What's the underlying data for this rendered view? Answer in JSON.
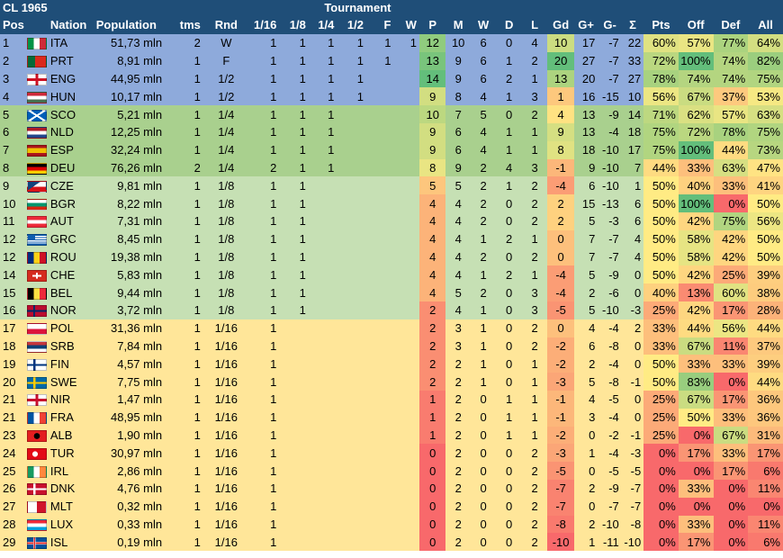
{
  "title": "CL 1965",
  "tournament_label": "Tournament",
  "headers": [
    "Pos",
    "Nation",
    "Population",
    "tms",
    "Rnd",
    "1/16",
    "1/8",
    "1/4",
    "1/2",
    "F",
    "W",
    "P",
    "M",
    "W",
    "D",
    "L",
    "Gd",
    "G+",
    "G-",
    "Σ",
    "Pts",
    "Off",
    "Def",
    "All"
  ],
  "colors": {
    "header_bg": "#1f4e78",
    "band_blue": "#8eaadb",
    "band_green": "#a9d08e",
    "band_lightgreen": "#c6e0b4",
    "band_yellow": "#ffe699",
    "scale_red": "#f8696b",
    "scale_yellow": "#ffeb84",
    "scale_green": "#63be7b"
  },
  "rows": [
    {
      "pos": "1",
      "band": "blue",
      "flag": "ita-flag",
      "nation": "ITA",
      "pop": "51,73 mln",
      "tms": "2",
      "rnd": "W",
      "r16": "1",
      "r8": "1",
      "r4": "1",
      "r2": "1",
      "f": "1",
      "w": "1",
      "p": "12",
      "m": "10",
      "win": "6",
      "d": "0",
      "l": "4",
      "gd": "10",
      "gp": "17",
      "gm": "-7",
      "sig": "22",
      "pts": "60%",
      "off": "57%",
      "def": "77%",
      "all": "64%"
    },
    {
      "pos": "2",
      "band": "blue",
      "flag": "prt-flag",
      "nation": "PRT",
      "pop": "8,91 mln",
      "tms": "1",
      "rnd": "F",
      "r16": "1",
      "r8": "1",
      "r4": "1",
      "r2": "1",
      "f": "1",
      "w": "",
      "p": "13",
      "m": "9",
      "win": "6",
      "d": "1",
      "l": "2",
      "gd": "20",
      "gp": "27",
      "gm": "-7",
      "sig": "33",
      "pts": "72%",
      "off": "100%",
      "def": "74%",
      "all": "82%"
    },
    {
      "pos": "3",
      "band": "blue",
      "flag": "eng-flag",
      "nation": "ENG",
      "pop": "44,95 mln",
      "tms": "1",
      "rnd": "1/2",
      "r16": "1",
      "r8": "1",
      "r4": "1",
      "r2": "1",
      "f": "",
      "w": "",
      "p": "14",
      "m": "9",
      "win": "6",
      "d": "2",
      "l": "1",
      "gd": "13",
      "gp": "20",
      "gm": "-7",
      "sig": "27",
      "pts": "78%",
      "off": "74%",
      "def": "74%",
      "all": "75%"
    },
    {
      "pos": "4",
      "band": "blue",
      "flag": "hun-flag",
      "nation": "HUN",
      "pop": "10,17 mln",
      "tms": "1",
      "rnd": "1/2",
      "r16": "1",
      "r8": "1",
      "r4": "1",
      "r2": "1",
      "f": "",
      "w": "",
      "p": "9",
      "m": "8",
      "win": "4",
      "d": "1",
      "l": "3",
      "gd": "1",
      "gp": "16",
      "gm": "-15",
      "sig": "10",
      "pts": "56%",
      "off": "67%",
      "def": "37%",
      "all": "53%"
    },
    {
      "pos": "5",
      "band": "green",
      "flag": "sco-flag",
      "nation": "SCO",
      "pop": "5,21 mln",
      "tms": "1",
      "rnd": "1/4",
      "r16": "1",
      "r8": "1",
      "r4": "1",
      "r2": "",
      "f": "",
      "w": "",
      "p": "10",
      "m": "7",
      "win": "5",
      "d": "0",
      "l": "2",
      "gd": "4",
      "gp": "13",
      "gm": "-9",
      "sig": "14",
      "pts": "71%",
      "off": "62%",
      "def": "57%",
      "all": "63%"
    },
    {
      "pos": "6",
      "band": "green",
      "flag": "nld-flag",
      "nation": "NLD",
      "pop": "12,25 mln",
      "tms": "1",
      "rnd": "1/4",
      "r16": "1",
      "r8": "1",
      "r4": "1",
      "r2": "",
      "f": "",
      "w": "",
      "p": "9",
      "m": "6",
      "win": "4",
      "d": "1",
      "l": "1",
      "gd": "9",
      "gp": "13",
      "gm": "-4",
      "sig": "18",
      "pts": "75%",
      "off": "72%",
      "def": "78%",
      "all": "75%"
    },
    {
      "pos": "7",
      "band": "green",
      "flag": "esp-flag",
      "nation": "ESP",
      "pop": "32,24 mln",
      "tms": "1",
      "rnd": "1/4",
      "r16": "1",
      "r8": "1",
      "r4": "1",
      "r2": "",
      "f": "",
      "w": "",
      "p": "9",
      "m": "6",
      "win": "4",
      "d": "1",
      "l": "1",
      "gd": "8",
      "gp": "18",
      "gm": "-10",
      "sig": "17",
      "pts": "75%",
      "off": "100%",
      "def": "44%",
      "all": "73%"
    },
    {
      "pos": "8",
      "band": "green",
      "flag": "deu-flag",
      "nation": "DEU",
      "pop": "76,26 mln",
      "tms": "2",
      "rnd": "1/4",
      "r16": "2",
      "r8": "1",
      "r4": "1",
      "r2": "",
      "f": "",
      "w": "",
      "p": "8",
      "m": "9",
      "win": "2",
      "d": "4",
      "l": "3",
      "gd": "-1",
      "gp": "9",
      "gm": "-10",
      "sig": "7",
      "pts": "44%",
      "off": "33%",
      "def": "63%",
      "all": "47%"
    },
    {
      "pos": "9",
      "band": "lgreen",
      "flag": "cze-flag",
      "nation": "CZE",
      "pop": "9,81 mln",
      "tms": "1",
      "rnd": "1/8",
      "r16": "1",
      "r8": "1",
      "r4": "",
      "r2": "",
      "f": "",
      "w": "",
      "p": "5",
      "m": "5",
      "win": "2",
      "d": "1",
      "l": "2",
      "gd": "-4",
      "gp": "6",
      "gm": "-10",
      "sig": "1",
      "pts": "50%",
      "off": "40%",
      "def": "33%",
      "all": "41%"
    },
    {
      "pos": "10",
      "band": "lgreen",
      "flag": "bgr-flag",
      "nation": "BGR",
      "pop": "8,22 mln",
      "tms": "1",
      "rnd": "1/8",
      "r16": "1",
      "r8": "1",
      "r4": "",
      "r2": "",
      "f": "",
      "w": "",
      "p": "4",
      "m": "4",
      "win": "2",
      "d": "0",
      "l": "2",
      "gd": "2",
      "gp": "15",
      "gm": "-13",
      "sig": "6",
      "pts": "50%",
      "off": "100%",
      "def": "0%",
      "all": "50%"
    },
    {
      "pos": "11",
      "band": "lgreen",
      "flag": "aut-flag",
      "nation": "AUT",
      "pop": "7,31 mln",
      "tms": "1",
      "rnd": "1/8",
      "r16": "1",
      "r8": "1",
      "r4": "",
      "r2": "",
      "f": "",
      "w": "",
      "p": "4",
      "m": "4",
      "win": "2",
      "d": "0",
      "l": "2",
      "gd": "2",
      "gp": "5",
      "gm": "-3",
      "sig": "6",
      "pts": "50%",
      "off": "42%",
      "def": "75%",
      "all": "56%"
    },
    {
      "pos": "12",
      "band": "lgreen",
      "flag": "grc-flag",
      "nation": "GRC",
      "pop": "8,45 mln",
      "tms": "1",
      "rnd": "1/8",
      "r16": "1",
      "r8": "1",
      "r4": "",
      "r2": "",
      "f": "",
      "w": "",
      "p": "4",
      "m": "4",
      "win": "1",
      "d": "2",
      "l": "1",
      "gd": "0",
      "gp": "7",
      "gm": "-7",
      "sig": "4",
      "pts": "50%",
      "off": "58%",
      "def": "42%",
      "all": "50%"
    },
    {
      "pos": "12",
      "band": "lgreen",
      "flag": "rou-flag",
      "nation": "ROU",
      "pop": "19,38 mln",
      "tms": "1",
      "rnd": "1/8",
      "r16": "1",
      "r8": "1",
      "r4": "",
      "r2": "",
      "f": "",
      "w": "",
      "p": "4",
      "m": "4",
      "win": "2",
      "d": "0",
      "l": "2",
      "gd": "0",
      "gp": "7",
      "gm": "-7",
      "sig": "4",
      "pts": "50%",
      "off": "58%",
      "def": "42%",
      "all": "50%"
    },
    {
      "pos": "14",
      "band": "lgreen",
      "flag": "che-flag",
      "nation": "CHE",
      "pop": "5,83 mln",
      "tms": "1",
      "rnd": "1/8",
      "r16": "1",
      "r8": "1",
      "r4": "",
      "r2": "",
      "f": "",
      "w": "",
      "p": "4",
      "m": "4",
      "win": "1",
      "d": "2",
      "l": "1",
      "gd": "-4",
      "gp": "5",
      "gm": "-9",
      "sig": "0",
      "pts": "50%",
      "off": "42%",
      "def": "25%",
      "all": "39%"
    },
    {
      "pos": "15",
      "band": "lgreen",
      "flag": "bel-flag",
      "nation": "BEL",
      "pop": "9,44 mln",
      "tms": "1",
      "rnd": "1/8",
      "r16": "1",
      "r8": "1",
      "r4": "",
      "r2": "",
      "f": "",
      "w": "",
      "p": "4",
      "m": "5",
      "win": "2",
      "d": "0",
      "l": "3",
      "gd": "-4",
      "gp": "2",
      "gm": "-6",
      "sig": "0",
      "pts": "40%",
      "off": "13%",
      "def": "60%",
      "all": "38%"
    },
    {
      "pos": "16",
      "band": "lgreen",
      "flag": "nor-flag",
      "nation": "NOR",
      "pop": "3,72 mln",
      "tms": "1",
      "rnd": "1/8",
      "r16": "1",
      "r8": "1",
      "r4": "",
      "r2": "",
      "f": "",
      "w": "",
      "p": "2",
      "m": "4",
      "win": "1",
      "d": "0",
      "l": "3",
      "gd": "-5",
      "gp": "5",
      "gm": "-10",
      "sig": "-3",
      "pts": "25%",
      "off": "42%",
      "def": "17%",
      "all": "28%"
    },
    {
      "pos": "17",
      "band": "yellow",
      "flag": "pol-flag",
      "nation": "POL",
      "pop": "31,36 mln",
      "tms": "1",
      "rnd": "1/16",
      "r16": "1",
      "r8": "",
      "r4": "",
      "r2": "",
      "f": "",
      "w": "",
      "p": "2",
      "m": "3",
      "win": "1",
      "d": "0",
      "l": "2",
      "gd": "0",
      "gp": "4",
      "gm": "-4",
      "sig": "2",
      "pts": "33%",
      "off": "44%",
      "def": "56%",
      "all": "44%"
    },
    {
      "pos": "18",
      "band": "yellow",
      "flag": "srb-flag",
      "nation": "SRB",
      "pop": "7,84 mln",
      "tms": "1",
      "rnd": "1/16",
      "r16": "1",
      "r8": "",
      "r4": "",
      "r2": "",
      "f": "",
      "w": "",
      "p": "2",
      "m": "3",
      "win": "1",
      "d": "0",
      "l": "2",
      "gd": "-2",
      "gp": "6",
      "gm": "-8",
      "sig": "0",
      "pts": "33%",
      "off": "67%",
      "def": "11%",
      "all": "37%"
    },
    {
      "pos": "19",
      "band": "yellow",
      "flag": "fin-flag",
      "nation": "FIN",
      "pop": "4,57 mln",
      "tms": "1",
      "rnd": "1/16",
      "r16": "1",
      "r8": "",
      "r4": "",
      "r2": "",
      "f": "",
      "w": "",
      "p": "2",
      "m": "2",
      "win": "1",
      "d": "0",
      "l": "1",
      "gd": "-2",
      "gp": "2",
      "gm": "-4",
      "sig": "0",
      "pts": "50%",
      "off": "33%",
      "def": "33%",
      "all": "39%"
    },
    {
      "pos": "20",
      "band": "yellow",
      "flag": "swe-flag",
      "nation": "SWE",
      "pop": "7,75 mln",
      "tms": "1",
      "rnd": "1/16",
      "r16": "1",
      "r8": "",
      "r4": "",
      "r2": "",
      "f": "",
      "w": "",
      "p": "2",
      "m": "2",
      "win": "1",
      "d": "0",
      "l": "1",
      "gd": "-3",
      "gp": "5",
      "gm": "-8",
      "sig": "-1",
      "pts": "50%",
      "off": "83%",
      "def": "0%",
      "all": "44%"
    },
    {
      "pos": "21",
      "band": "yellow",
      "flag": "nir-flag",
      "nation": "NIR",
      "pop": "1,47 mln",
      "tms": "1",
      "rnd": "1/16",
      "r16": "1",
      "r8": "",
      "r4": "",
      "r2": "",
      "f": "",
      "w": "",
      "p": "1",
      "m": "2",
      "win": "0",
      "d": "1",
      "l": "1",
      "gd": "-1",
      "gp": "4",
      "gm": "-5",
      "sig": "0",
      "pts": "25%",
      "off": "67%",
      "def": "17%",
      "all": "36%"
    },
    {
      "pos": "21",
      "band": "yellow",
      "flag": "fra-flag",
      "nation": "FRA",
      "pop": "48,95 mln",
      "tms": "1",
      "rnd": "1/16",
      "r16": "1",
      "r8": "",
      "r4": "",
      "r2": "",
      "f": "",
      "w": "",
      "p": "1",
      "m": "2",
      "win": "0",
      "d": "1",
      "l": "1",
      "gd": "-1",
      "gp": "3",
      "gm": "-4",
      "sig": "0",
      "pts": "25%",
      "off": "50%",
      "def": "33%",
      "all": "36%"
    },
    {
      "pos": "23",
      "band": "yellow",
      "flag": "alb-flag",
      "nation": "ALB",
      "pop": "1,90 mln",
      "tms": "1",
      "rnd": "1/16",
      "r16": "1",
      "r8": "",
      "r4": "",
      "r2": "",
      "f": "",
      "w": "",
      "p": "1",
      "m": "2",
      "win": "0",
      "d": "1",
      "l": "1",
      "gd": "-2",
      "gp": "0",
      "gm": "-2",
      "sig": "-1",
      "pts": "25%",
      "off": "0%",
      "def": "67%",
      "all": "31%"
    },
    {
      "pos": "24",
      "band": "yellow",
      "flag": "tur-flag",
      "nation": "TUR",
      "pop": "30,97 mln",
      "tms": "1",
      "rnd": "1/16",
      "r16": "1",
      "r8": "",
      "r4": "",
      "r2": "",
      "f": "",
      "w": "",
      "p": "0",
      "m": "2",
      "win": "0",
      "d": "0",
      "l": "2",
      "gd": "-3",
      "gp": "1",
      "gm": "-4",
      "sig": "-3",
      "pts": "0%",
      "off": "17%",
      "def": "33%",
      "all": "17%"
    },
    {
      "pos": "25",
      "band": "yellow",
      "flag": "irl-flag",
      "nation": "IRL",
      "pop": "2,86 mln",
      "tms": "1",
      "rnd": "1/16",
      "r16": "1",
      "r8": "",
      "r4": "",
      "r2": "",
      "f": "",
      "w": "",
      "p": "0",
      "m": "2",
      "win": "0",
      "d": "0",
      "l": "2",
      "gd": "-5",
      "gp": "0",
      "gm": "-5",
      "sig": "-5",
      "pts": "0%",
      "off": "0%",
      "def": "17%",
      "all": "6%"
    },
    {
      "pos": "26",
      "band": "yellow",
      "flag": "dnk-flag",
      "nation": "DNK",
      "pop": "4,76 mln",
      "tms": "1",
      "rnd": "1/16",
      "r16": "1",
      "r8": "",
      "r4": "",
      "r2": "",
      "f": "",
      "w": "",
      "p": "0",
      "m": "2",
      "win": "0",
      "d": "0",
      "l": "2",
      "gd": "-7",
      "gp": "2",
      "gm": "-9",
      "sig": "-7",
      "pts": "0%",
      "off": "33%",
      "def": "0%",
      "all": "11%"
    },
    {
      "pos": "27",
      "band": "yellow",
      "flag": "mlt-flag",
      "nation": "MLT",
      "pop": "0,32 mln",
      "tms": "1",
      "rnd": "1/16",
      "r16": "1",
      "r8": "",
      "r4": "",
      "r2": "",
      "f": "",
      "w": "",
      "p": "0",
      "m": "2",
      "win": "0",
      "d": "0",
      "l": "2",
      "gd": "-7",
      "gp": "0",
      "gm": "-7",
      "sig": "-7",
      "pts": "0%",
      "off": "0%",
      "def": "0%",
      "all": "0%"
    },
    {
      "pos": "28",
      "band": "yellow",
      "flag": "lux-flag",
      "nation": "LUX",
      "pop": "0,33 mln",
      "tms": "1",
      "rnd": "1/16",
      "r16": "1",
      "r8": "",
      "r4": "",
      "r2": "",
      "f": "",
      "w": "",
      "p": "0",
      "m": "2",
      "win": "0",
      "d": "0",
      "l": "2",
      "gd": "-8",
      "gp": "2",
      "gm": "-10",
      "sig": "-8",
      "pts": "0%",
      "off": "33%",
      "def": "0%",
      "all": "11%"
    },
    {
      "pos": "29",
      "band": "yellow",
      "flag": "isl-flag",
      "nation": "ISL",
      "pop": "0,19 mln",
      "tms": "1",
      "rnd": "1/16",
      "r16": "1",
      "r8": "",
      "r4": "",
      "r2": "",
      "f": "",
      "w": "",
      "p": "0",
      "m": "2",
      "win": "0",
      "d": "0",
      "l": "2",
      "gd": "-10",
      "gp": "1",
      "gm": "-11",
      "sig": "-10",
      "pts": "0%",
      "off": "17%",
      "def": "0%",
      "all": "6%"
    }
  ]
}
